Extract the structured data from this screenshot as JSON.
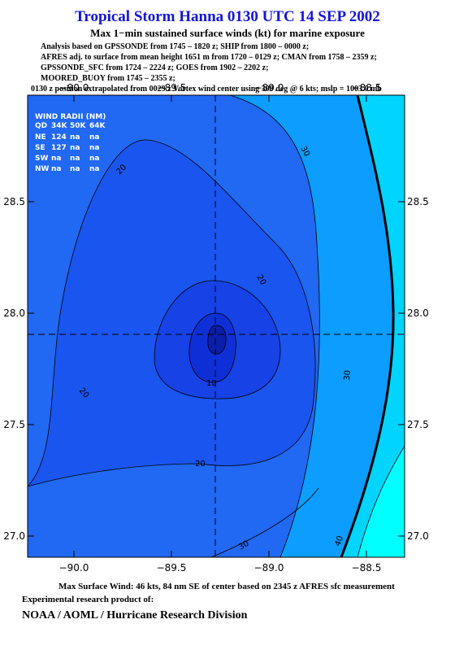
{
  "chart_data": {
    "type": "contour",
    "title": "Tropical Storm Hanna 0130 UTC 14 SEP 2002",
    "subtitle": "Max 1−min sustained surface winds (kt) for marine exposure",
    "notes": [
      "Analysis based on  GPSSONDE from 1745 – 1820 z;  SHIP from 1800 – 0000 z;",
      "AFRES adj. to surface from mean height 1651 m from 1720 – 0129 z;  CMAN from 1758 – 2359 z;",
      "GPSSONDE_SFC from 1724 – 2224 z;  GOES from 1902 – 2202 z;",
      "MOORED_BUOY from 1745 – 2355 z;",
      "0130 z position extrapolated from 0029 z Vortex wind center using 300 deg @ 6 kts; mslp = 1003.0 mb"
    ],
    "xlim": [
      -90.2375,
      -88.304
    ],
    "ylim": [
      26.905,
      28.978
    ],
    "xticks": [
      {
        "value": -90,
        "label": "−90.0"
      },
      {
        "value": -89.5,
        "label": "−89.5"
      },
      {
        "value": -89,
        "label": "−89.0"
      },
      {
        "value": -88.5,
        "label": "−88.5"
      }
    ],
    "yticks": [
      {
        "value": 27,
        "label": "27.0"
      },
      27.5,
      {
        "value": 28,
        "label": "28.0"
      },
      28.5
    ],
    "wind_radii": {
      "title": "WIND RADII (NM)",
      "header": [
        "QD",
        "34K",
        "50K",
        "64K"
      ],
      "rows": [
        [
          "NE",
          "124",
          "na",
          "na"
        ],
        [
          "SE",
          "127",
          "na",
          "na"
        ],
        [
          "SW",
          "na",
          "na",
          "na"
        ],
        [
          "NW",
          "na",
          "na",
          "na"
        ]
      ]
    },
    "contour_labels": [
      20,
      20,
      20,
      20,
      10,
      30,
      30,
      30,
      40
    ],
    "footer": [
      "Max Surface Wind: 46 kts, 84 nm SE of center based on 2345 z AFRES sfc measurement",
      "Experimental research product of:",
      "NOAA / AOML / Hurricane Research Division"
    ]
  }
}
